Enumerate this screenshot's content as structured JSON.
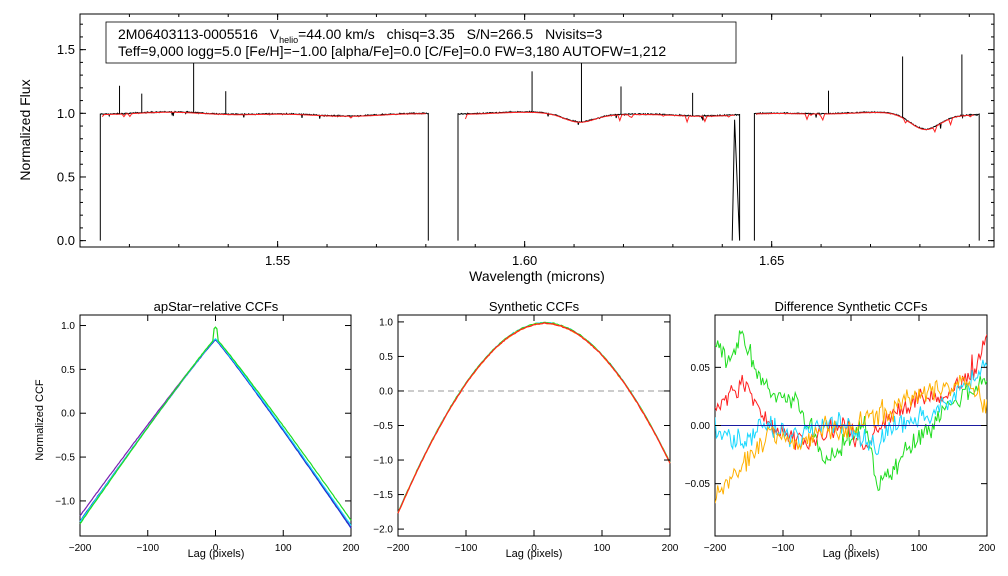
{
  "header": {
    "star_id": "2M06403113-0005516",
    "vhelio_label_main": "V",
    "vhelio_label_sub": "helio",
    "vhelio_value": "=44.00 km/s",
    "chisq": "chisq=3.35",
    "snr": "S/N=266.5",
    "nvisits": "Nvisits=3",
    "params_line": "Teff=9,000 logg=5.0 [Fe/H]=−1.00 [alpha/Fe]=0.0 [C/Fe]=0.0 FW=3,180 AUTOFW=1,212"
  },
  "colors": {
    "observed": "#000000",
    "model": "#ff2020",
    "blue": "#1f2fd0",
    "purple": "#7a1fb0",
    "cyan": "#18d8ff",
    "green": "#20dd20",
    "teal": "#10b0a0",
    "orange": "#ffb000",
    "red": "#ff2020",
    "gray": "#999999",
    "darkblue": "#1a1aa0"
  },
  "chart_data": [
    {
      "id": "spectrum",
      "type": "line",
      "title": "",
      "xlabel": "Wavelength (microns)",
      "ylabel": "Normalized Flux",
      "xlim": [
        1.51,
        1.695
      ],
      "ylim": [
        -0.05,
        1.78
      ],
      "xticks": [
        1.55,
        1.6,
        1.65
      ],
      "xtick_labels": [
        "1.55",
        "1.60",
        "1.65"
      ],
      "yticks": [
        0.0,
        0.5,
        1.0,
        1.5
      ],
      "ytick_labels": [
        "0.0",
        "0.5",
        "1.0",
        "1.5"
      ],
      "series": [
        {
          "name": "observed",
          "segments": [
            [
              1.5141,
              1.5805
            ],
            [
              1.5865,
              1.6435
            ],
            [
              1.6465,
              1.692
            ]
          ]
        },
        {
          "name": "model",
          "segments": [
            [
              1.5145,
              1.58
            ],
            [
              1.588,
              1.6425
            ],
            [
              1.6468,
              1.691
            ]
          ]
        }
      ],
      "absorption_lines": [
        {
          "center": 1.611,
          "depth": 0.06,
          "width": 0.003
        },
        {
          "center": 1.681,
          "depth": 0.12,
          "width": 0.003
        }
      ],
      "emission_spikes": [
        1.518,
        1.5225,
        1.533,
        1.5395,
        1.6015,
        1.6115,
        1.6195,
        1.634,
        1.6615,
        1.6765,
        1.6885
      ]
    },
    {
      "id": "apstar-ccf",
      "type": "line",
      "title": "apStar−relative CCFs",
      "xlabel": "Lag (pixels)",
      "ylabel": "Normalized CCF",
      "xlim": [
        -200,
        200
      ],
      "ylim": [
        -1.4,
        1.12
      ],
      "xticks": [
        -200,
        -100,
        0,
        100,
        200
      ],
      "xtick_labels": [
        "−200",
        "−100",
        "0",
        "100",
        "200"
      ],
      "yticks": [
        -1.0,
        -0.5,
        0.0,
        0.5,
        1.0
      ],
      "ytick_labels": [
        "−1.0",
        "−0.5",
        "0.0",
        "0.5",
        "1.0"
      ],
      "series": [
        {
          "name": "purple",
          "peak": 0.84,
          "left_end": -1.17,
          "right_end": -1.3
        },
        {
          "name": "blue",
          "peak": 0.84,
          "left_end": -1.23,
          "right_end": -1.31
        },
        {
          "name": "cyan",
          "peak": 0.85,
          "left_end": -1.24,
          "right_end": -1.28
        },
        {
          "name": "green",
          "peak": 0.86,
          "left_end": -1.26,
          "right_end": -1.22
        }
      ]
    },
    {
      "id": "synthetic-ccf",
      "type": "line",
      "title": "Synthetic CCFs",
      "xlabel": "Lag (pixels)",
      "ylabel": "",
      "xlim": [
        -200,
        200
      ],
      "ylim": [
        -2.1,
        1.1
      ],
      "xticks": [
        -200,
        -100,
        0,
        100,
        200
      ],
      "xtick_labels": [
        "−200",
        "−100",
        "0",
        "100",
        "200"
      ],
      "yticks": [
        -2.0,
        -1.5,
        -1.0,
        -0.5,
        0.0,
        0.5,
        1.0
      ],
      "ytick_labels": [
        "−2.0",
        "−1.5",
        "−1.0",
        "−0.5",
        "0.0",
        "0.5",
        "1.0"
      ],
      "zero_line": 0.0,
      "series": [
        {
          "name": "cyan",
          "peak": 0.99
        },
        {
          "name": "green",
          "peak": 0.99
        },
        {
          "name": "orange",
          "peak": 0.98
        },
        {
          "name": "red",
          "peak": 0.98
        }
      ]
    },
    {
      "id": "diff-ccf",
      "type": "line",
      "title": "Difference Synthetic CCFs",
      "xlabel": "Lag (pixels)",
      "ylabel": "",
      "xlim": [
        -200,
        200
      ],
      "ylim": [
        -0.095,
        0.095
      ],
      "xticks": [
        -200,
        -100,
        0,
        100,
        200
      ],
      "xtick_labels": [
        "−200",
        "−100",
        "0",
        "100",
        "200"
      ],
      "yticks": [
        -0.05,
        0.0,
        0.05
      ],
      "ytick_labels": [
        "−0.05",
        "0.00",
        "0.05"
      ],
      "zero_line": 0.0,
      "series": [
        {
          "name": "green",
          "anchors": [
            [
              -200,
              0.07
            ],
            [
              -180,
              0.055
            ],
            [
              -160,
              0.08
            ],
            [
              -140,
              0.045
            ],
            [
              -120,
              0.03
            ],
            [
              -100,
              0.025
            ],
            [
              -80,
              0.02
            ],
            [
              -60,
              0.0
            ],
            [
              -40,
              -0.03
            ],
            [
              -20,
              -0.02
            ],
            [
              0,
              -0.01
            ],
            [
              20,
              0.0
            ],
            [
              40,
              -0.05
            ],
            [
              60,
              -0.04
            ],
            [
              80,
              -0.02
            ],
            [
              100,
              -0.01
            ],
            [
              120,
              0.0
            ],
            [
              140,
              0.015
            ],
            [
              160,
              0.025
            ],
            [
              180,
              0.03
            ],
            [
              200,
              0.045
            ]
          ]
        },
        {
          "name": "red",
          "anchors": [
            [
              -200,
              0.015
            ],
            [
              -180,
              0.025
            ],
            [
              -160,
              0.035
            ],
            [
              -140,
              0.02
            ],
            [
              -120,
              0.0
            ],
            [
              -100,
              -0.005
            ],
            [
              -80,
              -0.01
            ],
            [
              -60,
              -0.015
            ],
            [
              -40,
              -0.01
            ],
            [
              -20,
              0.0
            ],
            [
              0,
              -0.005
            ],
            [
              20,
              -0.02
            ],
            [
              40,
              0.0
            ],
            [
              60,
              0.01
            ],
            [
              80,
              0.015
            ],
            [
              100,
              0.025
            ],
            [
              120,
              0.02
            ],
            [
              140,
              0.025
            ],
            [
              160,
              0.035
            ],
            [
              180,
              0.05
            ],
            [
              200,
              0.075
            ]
          ]
        },
        {
          "name": "cyan",
          "anchors": [
            [
              -200,
              0.0
            ],
            [
              -180,
              -0.01
            ],
            [
              -160,
              -0.015
            ],
            [
              -140,
              -0.005
            ],
            [
              -120,
              0.0
            ],
            [
              -100,
              -0.005
            ],
            [
              -80,
              -0.01
            ],
            [
              -60,
              -0.005
            ],
            [
              -40,
              0.0
            ],
            [
              -20,
              0.005
            ],
            [
              0,
              -0.005
            ],
            [
              20,
              -0.01
            ],
            [
              40,
              -0.02
            ],
            [
              60,
              0.0
            ],
            [
              80,
              0.0
            ],
            [
              100,
              0.005
            ],
            [
              120,
              0.01
            ],
            [
              140,
              0.02
            ],
            [
              160,
              0.03
            ],
            [
              180,
              0.04
            ],
            [
              200,
              0.05
            ]
          ]
        },
        {
          "name": "orange",
          "anchors": [
            [
              -200,
              -0.06
            ],
            [
              -180,
              -0.05
            ],
            [
              -160,
              -0.035
            ],
            [
              -140,
              -0.02
            ],
            [
              -120,
              -0.005
            ],
            [
              -100,
              -0.01
            ],
            [
              -80,
              -0.02
            ],
            [
              -60,
              -0.01
            ],
            [
              -40,
              0.0
            ],
            [
              -20,
              -0.01
            ],
            [
              0,
              0.0
            ],
            [
              20,
              0.005
            ],
            [
              40,
              0.01
            ],
            [
              60,
              0.01
            ],
            [
              80,
              0.025
            ],
            [
              100,
              0.025
            ],
            [
              120,
              0.03
            ],
            [
              140,
              0.035
            ],
            [
              160,
              0.04
            ],
            [
              180,
              0.03
            ],
            [
              200,
              0.015
            ]
          ]
        },
        {
          "name": "darkblue",
          "anchors": [
            [
              -200,
              0.0
            ],
            [
              200,
              0.0
            ]
          ]
        }
      ]
    }
  ]
}
